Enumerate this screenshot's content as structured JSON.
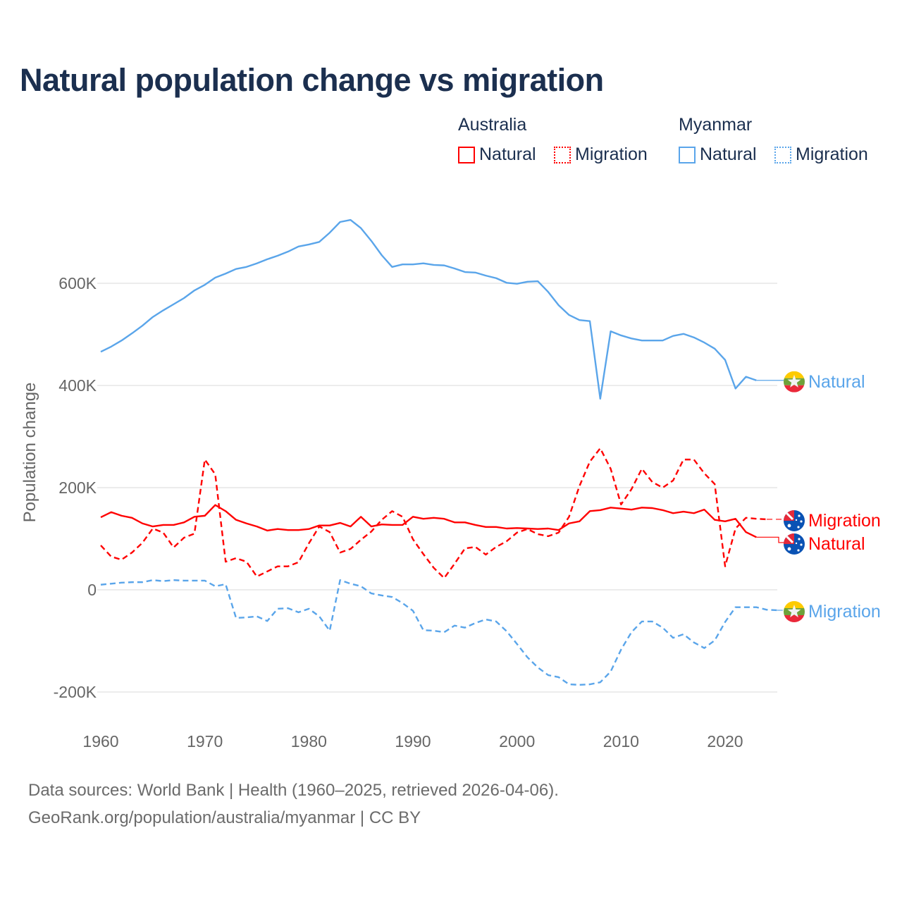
{
  "title": "Natural population change vs migration",
  "legend": {
    "groups": [
      {
        "name": "Australia",
        "items": [
          {
            "label": "Natural",
            "style": "solid"
          },
          {
            "label": "Migration",
            "style": "dotted"
          }
        ],
        "color": "#ff0000"
      },
      {
        "name": "Myanmar",
        "items": [
          {
            "label": "Natural",
            "style": "solid"
          },
          {
            "label": "Migration",
            "style": "dotted"
          }
        ],
        "color": "#5aa5ea"
      }
    ]
  },
  "footer": {
    "line1": "Data sources: World Bank | Health (1960–2025, retrieved 2026-04-06).",
    "line2": "GeoRank.org/population/australia/myanmar | CC BY"
  },
  "chart_data": {
    "type": "line",
    "title": "Natural population change vs migration",
    "xlabel": "",
    "ylabel": "Population change",
    "xlim": [
      1960,
      2025
    ],
    "ylim": [
      -220000,
      760000
    ],
    "yticks": [
      {
        "value": -200000,
        "label": "-200K"
      },
      {
        "value": 0,
        "label": "0"
      },
      {
        "value": 200000,
        "label": "200K"
      },
      {
        "value": 400000,
        "label": "400K"
      },
      {
        "value": 600000,
        "label": "600K"
      }
    ],
    "xticks": [
      {
        "value": 1960,
        "label": "1960"
      },
      {
        "value": 1970,
        "label": "1970"
      },
      {
        "value": 1980,
        "label": "1980"
      },
      {
        "value": 1990,
        "label": "1990"
      },
      {
        "value": 2000,
        "label": "2000"
      },
      {
        "value": 2010,
        "label": "2010"
      },
      {
        "value": 2020,
        "label": "2020"
      }
    ],
    "grid": true,
    "legend_position": "top-right",
    "series": [
      {
        "name": "Myanmar Natural",
        "end_label": "Natural",
        "color": "#5aa5ea",
        "dash": false,
        "flag": "myanmar",
        "start_year": 1960,
        "values_k": [
          466,
          476,
          488,
          502,
          517,
          534,
          547,
          559,
          571,
          586,
          597,
          611,
          619,
          628,
          632,
          639,
          647,
          654,
          662,
          672,
          676,
          681,
          699,
          720,
          724,
          708,
          683,
          655,
          632,
          637,
          637,
          639,
          636,
          635,
          629,
          622,
          621,
          615,
          610,
          601,
          599,
          603,
          604,
          583,
          557,
          538,
          528,
          526,
          374,
          506,
          498,
          492,
          488,
          488,
          488,
          497,
          501,
          494,
          484,
          472,
          450,
          394,
          417,
          410
        ]
      },
      {
        "name": "Australia Migration",
        "end_label": "Migration",
        "color": "#ff0000",
        "dash": true,
        "flag": "australia",
        "start_year": 1960,
        "values_k": [
          87,
          65,
          59,
          73,
          92,
          120,
          112,
          83,
          102,
          110,
          255,
          226,
          55,
          62,
          55,
          26,
          36,
          46,
          46,
          54,
          91,
          124,
          113,
          73,
          80,
          98,
          114,
          137,
          154,
          143,
          99,
          70,
          43,
          23,
          51,
          81,
          84,
          69,
          84,
          95,
          112,
          119,
          109,
          105,
          112,
          143,
          203,
          251,
          277,
          237,
          167,
          197,
          237,
          211,
          200,
          214,
          255,
          255,
          228,
          207,
          46,
          120,
          141,
          139,
          138
        ]
      },
      {
        "name": "Australia Natural",
        "end_label": "Natural",
        "color": "#ff0000",
        "dash": false,
        "flag": "australia",
        "start_year": 1960,
        "values_k": [
          142,
          152,
          145,
          141,
          130,
          124,
          127,
          127,
          132,
          143,
          145,
          166,
          154,
          137,
          130,
          124,
          116,
          119,
          117,
          117,
          119,
          126,
          126,
          131,
          124,
          143,
          124,
          128,
          127,
          127,
          143,
          139,
          141,
          139,
          132,
          132,
          127,
          123,
          123,
          120,
          121,
          120,
          119,
          120,
          117,
          130,
          134,
          154,
          156,
          161,
          159,
          157,
          161,
          160,
          156,
          150,
          153,
          150,
          157,
          137,
          134,
          139,
          113,
          103
        ]
      },
      {
        "name": "Myanmar Migration",
        "end_label": "Migration",
        "color": "#5aa5ea",
        "dash": true,
        "flag": "myanmar",
        "start_year": 1960,
        "values_k": [
          10,
          12,
          14,
          15,
          15,
          19,
          17,
          19,
          18,
          18,
          18,
          7,
          11,
          -55,
          -54,
          -52,
          -61,
          -37,
          -36,
          -44,
          -37,
          -52,
          -80,
          19,
          12,
          7,
          -7,
          -11,
          -14,
          -26,
          -41,
          -79,
          -80,
          -83,
          -70,
          -74,
          -65,
          -58,
          -62,
          -81,
          -106,
          -132,
          -152,
          -167,
          -171,
          -185,
          -186,
          -185,
          -181,
          -160,
          -117,
          -83,
          -62,
          -62,
          -74,
          -94,
          -87,
          -103,
          -114,
          -99,
          -63,
          -34,
          -34,
          -34,
          -39,
          -40
        ]
      }
    ]
  }
}
